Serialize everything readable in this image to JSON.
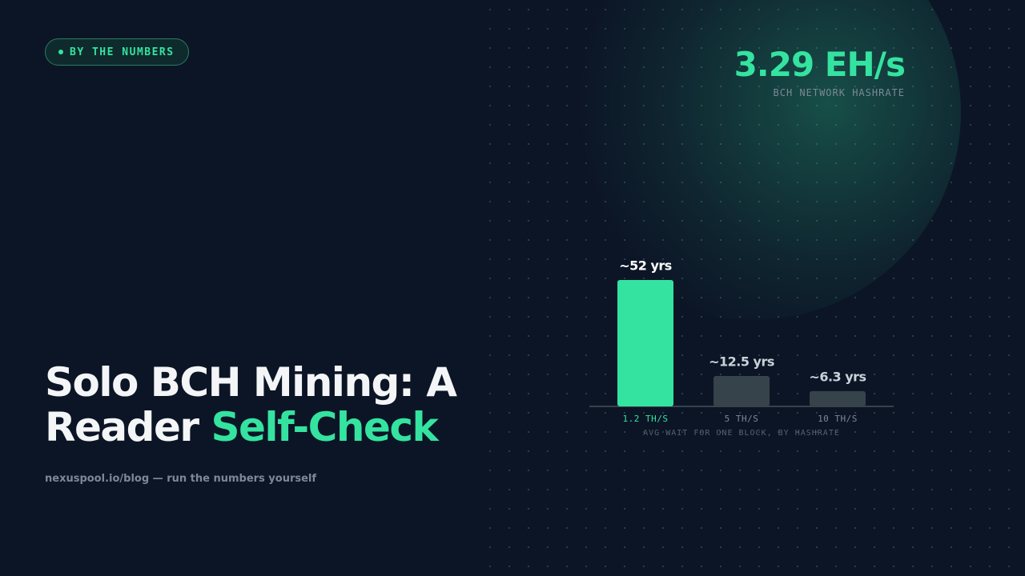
{
  "badge": "BY THE NUMBERS",
  "stat": {
    "value": "3.29 EH/s",
    "caption": "BCH NETWORK HASHRATE"
  },
  "headline": {
    "line1": "Solo BCH Mining: A",
    "line2": "Reader",
    "highlight": "Self-Check"
  },
  "footer": "nexuspool.io/blog — run the numbers yourself",
  "chart_data": {
    "type": "bar",
    "x_label": "AVG WAIT FOR ONE BLOCK, BY HASHRATE",
    "categories": [
      "1.2 TH/S",
      "5 TH/S",
      "10 TH/S"
    ],
    "values": [
      52,
      12.5,
      6.3
    ],
    "value_labels": [
      "~52 yrs",
      "~12.5 yrs",
      "~6.3 yrs"
    ],
    "colors": [
      "#34e3a0",
      "#36434a",
      "#36434a"
    ]
  }
}
